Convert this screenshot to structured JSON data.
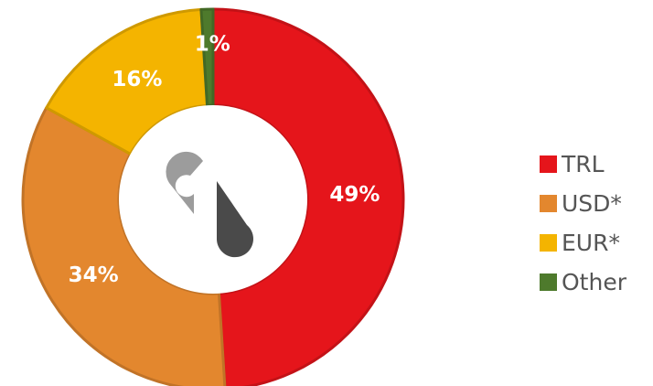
{
  "chart_data": {
    "type": "pie",
    "donut": true,
    "categories": [
      "TRL",
      "USD*",
      "EUR*",
      "Other"
    ],
    "values": [
      49,
      34,
      16,
      1
    ],
    "value_labels": [
      "49%",
      "34%",
      "16%",
      "1%"
    ],
    "colors": [
      "#E5151B",
      "#E3872E",
      "#F4B400",
      "#4E7A2C"
    ],
    "legend_position": "right",
    "center": "logo-icon"
  }
}
